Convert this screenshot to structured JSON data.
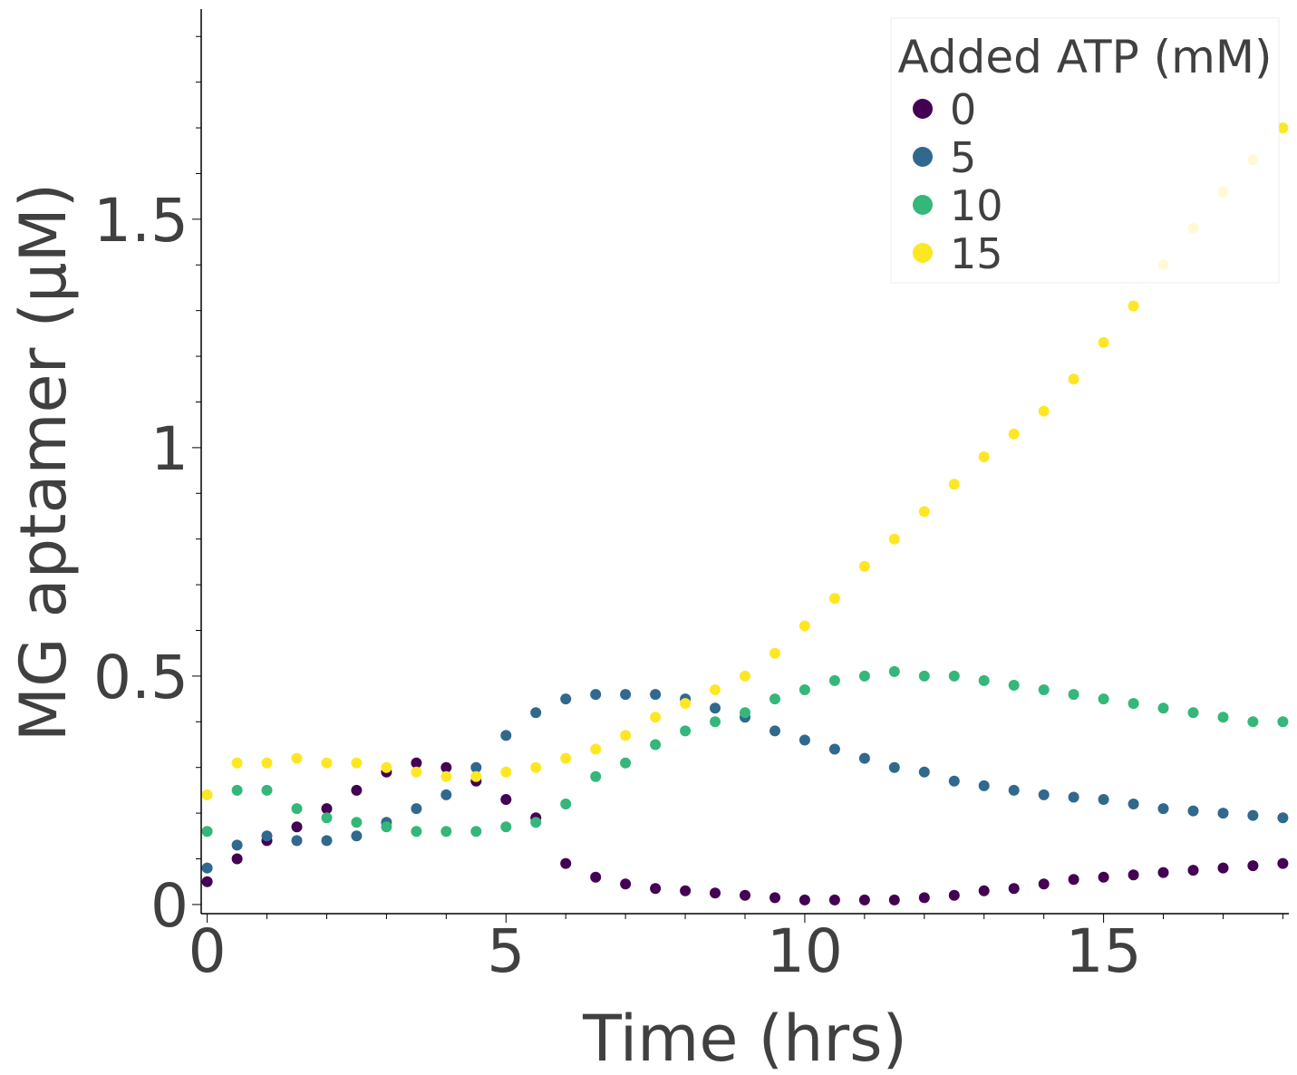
{
  "chart_data": {
    "type": "scatter",
    "xlabel": "Time (hrs)",
    "ylabel": "MG aptamer (μM)",
    "xlim": [
      -0.1,
      18.1
    ],
    "ylim": [
      -0.02,
      1.96
    ],
    "x_ticks": [
      0,
      5,
      10,
      15
    ],
    "x_tick_labels": [
      "0",
      "5",
      "10",
      "15"
    ],
    "y_ticks": [
      0,
      0.5,
      1,
      1.5
    ],
    "y_tick_labels": [
      "0",
      "0.5",
      "1",
      "1.5"
    ],
    "grid": false,
    "legend": {
      "title": "Added ATP (mM)",
      "placement": "top-right"
    },
    "series": [
      {
        "name": "0",
        "color": "#440154",
        "x": [
          0,
          0.5,
          1,
          1.5,
          2,
          2.5,
          3,
          3.5,
          4,
          4.5,
          5,
          5.5,
          6,
          6.5,
          7,
          7.5,
          8,
          8.5,
          9,
          9.5,
          10,
          10.5,
          11,
          11.5,
          12,
          12.5,
          13,
          13.5,
          14,
          14.5,
          15,
          15.5,
          16,
          16.5,
          17,
          17.5,
          18
        ],
        "y": [
          0.05,
          0.1,
          0.14,
          0.17,
          0.21,
          0.25,
          0.29,
          0.31,
          0.3,
          0.27,
          0.23,
          0.19,
          0.09,
          0.06,
          0.045,
          0.035,
          0.03,
          0.025,
          0.02,
          0.015,
          0.01,
          0.01,
          0.01,
          0.01,
          0.015,
          0.02,
          0.03,
          0.035,
          0.045,
          0.055,
          0.06,
          0.065,
          0.07,
          0.075,
          0.08,
          0.085,
          0.09
        ]
      },
      {
        "name": "5",
        "color": "#31688e",
        "x": [
          0,
          0.5,
          1,
          1.5,
          2,
          2.5,
          3,
          3.5,
          4,
          4.5,
          5,
          5.5,
          6,
          6.5,
          7,
          7.5,
          8,
          8.5,
          9,
          9.5,
          10,
          10.5,
          11,
          11.5,
          12,
          12.5,
          13,
          13.5,
          14,
          14.5,
          15,
          15.5,
          16,
          16.5,
          17,
          17.5,
          18
        ],
        "y": [
          0.08,
          0.13,
          0.15,
          0.14,
          0.14,
          0.15,
          0.18,
          0.21,
          0.24,
          0.3,
          0.37,
          0.42,
          0.45,
          0.46,
          0.46,
          0.46,
          0.45,
          0.43,
          0.41,
          0.38,
          0.36,
          0.34,
          0.32,
          0.3,
          0.29,
          0.27,
          0.26,
          0.25,
          0.24,
          0.235,
          0.23,
          0.22,
          0.21,
          0.205,
          0.2,
          0.195,
          0.19
        ]
      },
      {
        "name": "10",
        "color": "#35b779",
        "x": [
          0,
          0.5,
          1,
          1.5,
          2,
          2.5,
          3,
          3.5,
          4,
          4.5,
          5,
          5.5,
          6,
          6.5,
          7,
          7.5,
          8,
          8.5,
          9,
          9.5,
          10,
          10.5,
          11,
          11.5,
          12,
          12.5,
          13,
          13.5,
          14,
          14.5,
          15,
          15.5,
          16,
          16.5,
          17,
          17.5,
          18
        ],
        "y": [
          0.16,
          0.25,
          0.25,
          0.21,
          0.19,
          0.18,
          0.17,
          0.16,
          0.16,
          0.16,
          0.17,
          0.18,
          0.22,
          0.28,
          0.31,
          0.35,
          0.38,
          0.4,
          0.42,
          0.45,
          0.47,
          0.49,
          0.5,
          0.51,
          0.5,
          0.5,
          0.49,
          0.48,
          0.47,
          0.46,
          0.45,
          0.44,
          0.43,
          0.42,
          0.41,
          0.4,
          0.4
        ]
      },
      {
        "name": "15",
        "color": "#fde725",
        "x": [
          0,
          0.5,
          1,
          1.5,
          2,
          2.5,
          3,
          3.5,
          4,
          4.5,
          5,
          5.5,
          6,
          6.5,
          7,
          7.5,
          8,
          8.5,
          9,
          9.5,
          10,
          10.5,
          11,
          11.5,
          12,
          12.5,
          13,
          13.5,
          14,
          14.5,
          15,
          15.5,
          16,
          16.5,
          17,
          17.5,
          18
        ],
        "y": [
          0.24,
          0.31,
          0.31,
          0.32,
          0.31,
          0.31,
          0.3,
          0.29,
          0.28,
          0.28,
          0.29,
          0.3,
          0.32,
          0.34,
          0.37,
          0.41,
          0.44,
          0.47,
          0.5,
          0.55,
          0.61,
          0.67,
          0.74,
          0.8,
          0.86,
          0.92,
          0.98,
          1.03,
          1.08,
          1.15,
          1.23,
          1.31,
          1.4,
          1.48,
          1.56,
          1.63,
          1.7
        ]
      }
    ]
  }
}
